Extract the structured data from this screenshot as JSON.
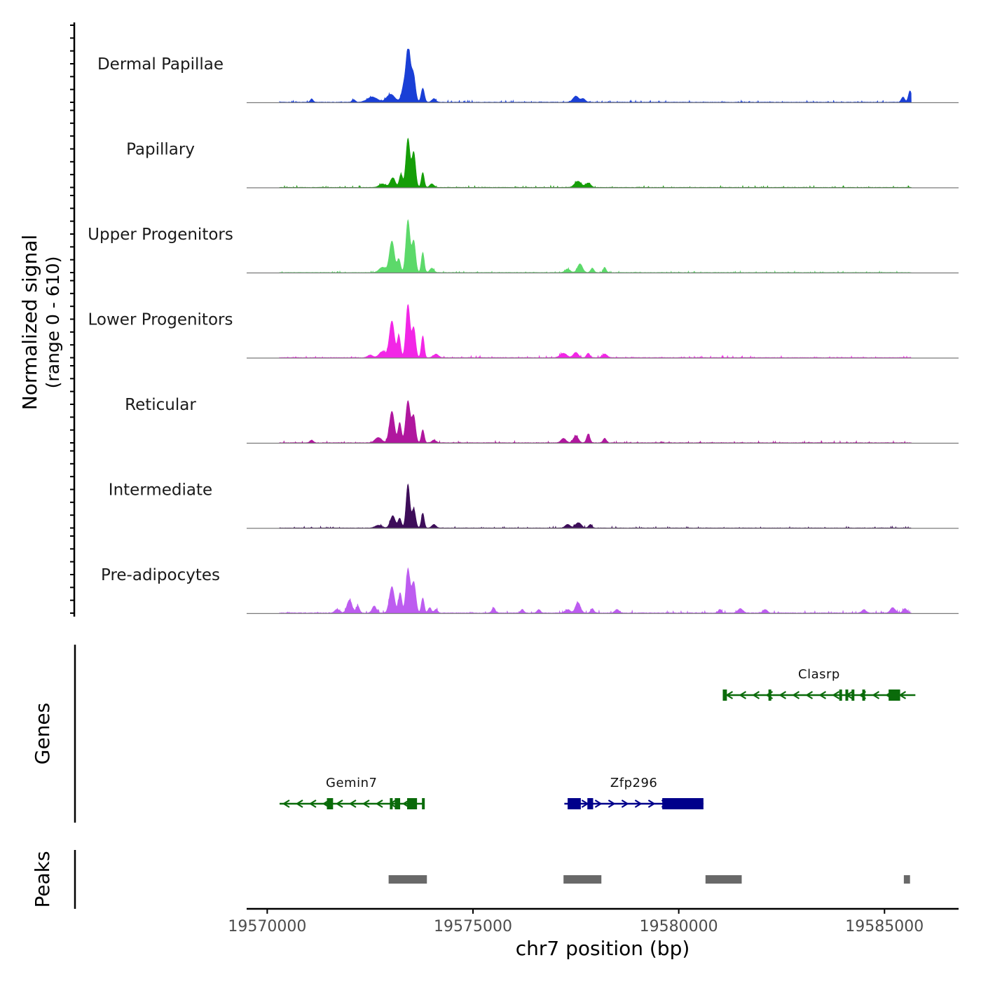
{
  "chart_data": {
    "type": "area",
    "title": "",
    "chromosome": "chr7",
    "xlabel": "chr7 position (bp)",
    "ylabel": "Normalized signal",
    "ylabel_range": "(range 0 - 610)",
    "xlim": [
      19569500,
      19586800
    ],
    "ylim": [
      0,
      610
    ],
    "x_ticks": [
      19570000,
      19575000,
      19580000,
      19585000
    ],
    "x_tick_labels": [
      "19570000",
      "19575000",
      "19580000",
      "19585000"
    ],
    "coverage": {
      "start": 19570300,
      "end": 19585650,
      "tracks": [
        {
          "name": "Dermal Papillae",
          "color": "#1a3fd6",
          "baseline": 4,
          "noise": 10,
          "seed": 3,
          "peaks": [
            [
              19571080,
              40,
              35
            ],
            [
              19572100,
              30,
              40
            ],
            [
              19572550,
              60,
              120
            ],
            [
              19573000,
              90,
              100
            ],
            [
              19573330,
              200,
              60
            ],
            [
              19573430,
              590,
              50
            ],
            [
              19573550,
              320,
              50
            ],
            [
              19573780,
              160,
              40
            ],
            [
              19574050,
              40,
              50
            ],
            [
              19577500,
              70,
              70
            ],
            [
              19577680,
              40,
              50
            ],
            [
              19585450,
              60,
              40
            ],
            [
              19585620,
              130,
              40
            ]
          ]
        },
        {
          "name": "Papillary",
          "color": "#159e08",
          "baseline": 3,
          "noise": 9,
          "seed": 7,
          "peaks": [
            [
              19572800,
              40,
              80
            ],
            [
              19573050,
              110,
              60
            ],
            [
              19573250,
              150,
              40
            ],
            [
              19573420,
              560,
              50
            ],
            [
              19573560,
              400,
              45
            ],
            [
              19573780,
              170,
              35
            ],
            [
              19574000,
              40,
              50
            ],
            [
              19577550,
              70,
              80
            ],
            [
              19577800,
              50,
              60
            ]
          ]
        },
        {
          "name": "Upper Progenitors",
          "color": "#5cd96a",
          "baseline": 3,
          "noise": 8,
          "seed": 11,
          "peaks": [
            [
              19572800,
              60,
              80
            ],
            [
              19573030,
              360,
              60
            ],
            [
              19573200,
              150,
              40
            ],
            [
              19573420,
              600,
              50
            ],
            [
              19573560,
              360,
              45
            ],
            [
              19573780,
              230,
              35
            ],
            [
              19574000,
              50,
              50
            ],
            [
              19577300,
              40,
              60
            ],
            [
              19577600,
              100,
              60
            ],
            [
              19577900,
              50,
              40
            ],
            [
              19578200,
              60,
              35
            ]
          ]
        },
        {
          "name": "Lower Progenitors",
          "color": "#f226e6",
          "baseline": 4,
          "noise": 10,
          "seed": 17,
          "peaks": [
            [
              19572500,
              30,
              60
            ],
            [
              19572800,
              70,
              80
            ],
            [
              19573030,
              420,
              60
            ],
            [
              19573200,
              250,
              40
            ],
            [
              19573420,
              610,
              50
            ],
            [
              19573560,
              340,
              45
            ],
            [
              19573780,
              250,
              35
            ],
            [
              19574100,
              40,
              60
            ],
            [
              19577200,
              50,
              80
            ],
            [
              19577500,
              60,
              60
            ],
            [
              19577800,
              50,
              40
            ],
            [
              19578200,
              40,
              60
            ]
          ]
        },
        {
          "name": "Reticular",
          "color": "#b0179e",
          "baseline": 4,
          "noise": 10,
          "seed": 23,
          "peaks": [
            [
              19571080,
              30,
              40
            ],
            [
              19572700,
              60,
              80
            ],
            [
              19573030,
              360,
              60
            ],
            [
              19573220,
              230,
              40
            ],
            [
              19573420,
              480,
              55
            ],
            [
              19573560,
              300,
              45
            ],
            [
              19573780,
              150,
              35
            ],
            [
              19574050,
              30,
              50
            ],
            [
              19577200,
              50,
              60
            ],
            [
              19577500,
              80,
              60
            ],
            [
              19577800,
              100,
              40
            ],
            [
              19578200,
              50,
              40
            ]
          ]
        },
        {
          "name": "Intermediate",
          "color": "#3d0d59",
          "baseline": 3,
          "noise": 9,
          "seed": 29,
          "peaks": [
            [
              19572700,
              30,
              80
            ],
            [
              19573050,
              140,
              60
            ],
            [
              19573220,
              110,
              40
            ],
            [
              19573420,
              500,
              45
            ],
            [
              19573560,
              220,
              45
            ],
            [
              19573780,
              170,
              35
            ],
            [
              19574050,
              40,
              50
            ],
            [
              19577300,
              40,
              60
            ],
            [
              19577560,
              60,
              70
            ],
            [
              19577850,
              40,
              40
            ]
          ]
        },
        {
          "name": "Pre-adipocytes",
          "color": "#bd5cf0",
          "baseline": 6,
          "noise": 14,
          "seed": 31,
          "peaks": [
            [
              19571700,
              40,
              60
            ],
            [
              19572000,
              150,
              60
            ],
            [
              19572200,
              80,
              40
            ],
            [
              19572600,
              80,
              50
            ],
            [
              19573030,
              300,
              60
            ],
            [
              19573230,
              230,
              40
            ],
            [
              19573420,
              500,
              50
            ],
            [
              19573560,
              350,
              50
            ],
            [
              19573780,
              170,
              35
            ],
            [
              19573950,
              60,
              40
            ],
            [
              19574100,
              40,
              40
            ],
            [
              19575500,
              60,
              40
            ],
            [
              19576200,
              40,
              40
            ],
            [
              19576600,
              40,
              40
            ],
            [
              19577300,
              40,
              60
            ],
            [
              19577550,
              120,
              60
            ],
            [
              19577900,
              50,
              40
            ],
            [
              19578500,
              40,
              50
            ],
            [
              19581000,
              40,
              40
            ],
            [
              19581500,
              50,
              60
            ],
            [
              19582100,
              40,
              50
            ],
            [
              19584500,
              40,
              50
            ],
            [
              19585200,
              60,
              60
            ],
            [
              19585500,
              50,
              50
            ]
          ]
        }
      ]
    },
    "genes": [
      {
        "name": "Gemin7",
        "strand": "-",
        "color": "#0a6b0a",
        "start": 19570300,
        "end": 19573800,
        "row": 2,
        "exons": [
          [
            19571450,
            19571600
          ],
          [
            19572980,
            19573030
          ],
          [
            19573100,
            19573230
          ],
          [
            19573400,
            19573640
          ],
          [
            19573760,
            19573800
          ]
        ]
      },
      {
        "name": "Zfp296",
        "strand": "+",
        "color": "#00008b",
        "start": 19577220,
        "end": 19580600,
        "row": 2,
        "exons": [
          [
            19577300,
            19577620
          ],
          [
            19577780,
            19577920
          ],
          [
            19579600,
            19580600
          ]
        ]
      },
      {
        "name": "Clasrp",
        "strand": "-",
        "color": "#0a6b0a",
        "start": 19581070,
        "end": 19585750,
        "row": 1,
        "exons": [
          [
            19581070,
            19581170
          ],
          [
            19582180,
            19582240
          ],
          [
            19583900,
            19583950
          ],
          [
            19584050,
            19584110
          ],
          [
            19584200,
            19584250
          ],
          [
            19584460,
            19584500
          ],
          [
            19585100,
            19585380
          ]
        ]
      }
    ],
    "peaks": [
      [
        19572950,
        19573880
      ],
      [
        19577200,
        19578120
      ],
      [
        19580650,
        19581530
      ],
      [
        19585470,
        19585620
      ]
    ],
    "panel_titles": {
      "genes": "Genes",
      "peaks": "Peaks"
    }
  }
}
